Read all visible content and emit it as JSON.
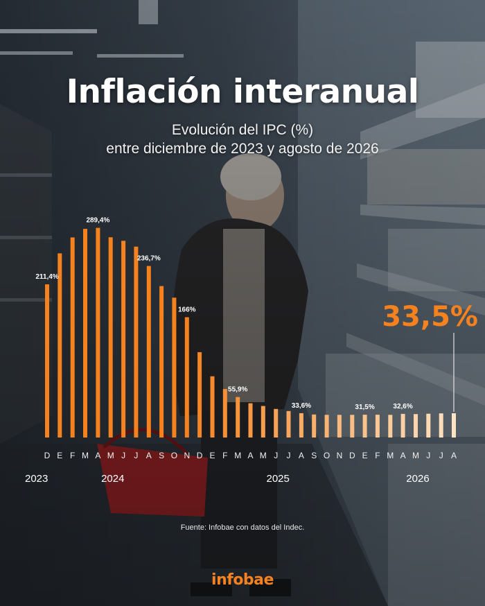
{
  "header": {
    "title": "Inflación interanual",
    "subtitle_line1": "Evolución del IPC (%)",
    "subtitle_line2": "entre diciembre de 2023 y agosto de 2026"
  },
  "source": "Fuente: Infobae con datos del Indec.",
  "brand": {
    "logo_text": "infobae"
  },
  "colors": {
    "accent": "#f5821f",
    "accent_light": "#fde3c4"
  },
  "chart_data": {
    "type": "bar",
    "categories": [
      "D",
      "E",
      "F",
      "M",
      "A",
      "M",
      "J",
      "J",
      "A",
      "S",
      "O",
      "N",
      "D",
      "E",
      "F",
      "M",
      "A",
      "M",
      "J",
      "J",
      "A",
      "S",
      "O",
      "N",
      "D",
      "E",
      "F",
      "M",
      "A",
      "M",
      "J",
      "J",
      "A"
    ],
    "values": [
      211.4,
      254.2,
      276.2,
      287.9,
      289.4,
      276.4,
      271.5,
      263.4,
      236.7,
      209.0,
      193.0,
      166.0,
      117.8,
      84.5,
      66.9,
      55.9,
      47.3,
      43.5,
      39.4,
      36.6,
      33.6,
      31.8,
      31.3,
      31.3,
      31.3,
      31.5,
      31.5,
      31.3,
      32.6,
      32.3,
      32.8,
      33.3,
      33.5
    ],
    "labels": [
      {
        "index": 0,
        "text": "211,4%"
      },
      {
        "index": 4,
        "text": "289,4%"
      },
      {
        "index": 8,
        "text": "236,7%"
      },
      {
        "index": 11,
        "text": "166%"
      },
      {
        "index": 15,
        "text": "55,9%"
      },
      {
        "index": 20,
        "text": "33,6%"
      },
      {
        "index": 25,
        "text": "31,5%"
      },
      {
        "index": 28,
        "text": "32,6%"
      }
    ],
    "highlight": {
      "index": 32,
      "text": "33,5%"
    },
    "years": [
      {
        "index": 0,
        "text": "2023"
      },
      {
        "index": 6,
        "text": "2024"
      },
      {
        "index": 19,
        "text": "2025"
      },
      {
        "index": 30,
        "text": "2026"
      }
    ],
    "ylim": [
      0,
      300
    ]
  }
}
